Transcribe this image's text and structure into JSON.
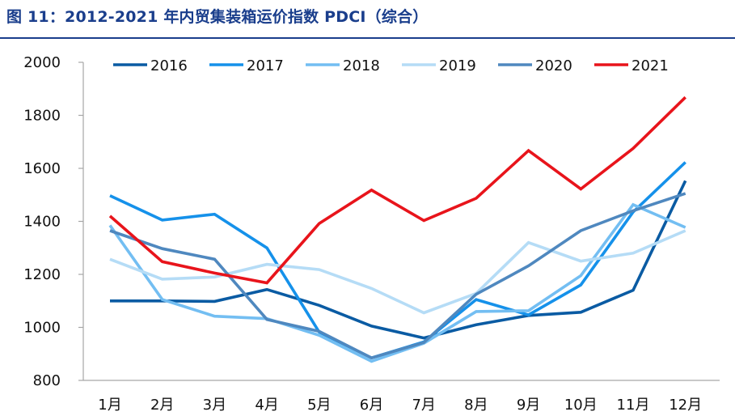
{
  "figure": {
    "title": "图 11：2012-2021 年内贸集装箱运价指数 PDCI（综合）"
  },
  "chart_data": {
    "type": "line",
    "title": "图 11：2012-2021 年内贸集装箱运价指数 PDCI（综合）",
    "xlabel": "",
    "ylabel": "",
    "categories": [
      "1月",
      "2月",
      "3月",
      "4月",
      "5月",
      "6月",
      "7月",
      "8月",
      "9月",
      "10月",
      "11月",
      "12月"
    ],
    "ylim": [
      800,
      2000
    ],
    "yticks": [
      800,
      1000,
      1200,
      1400,
      1600,
      1800,
      2000
    ],
    "grid": false,
    "legend": "top",
    "series": [
      {
        "name": "2016",
        "color": "#0a5ba3",
        "values": [
          1100,
          1100,
          1098,
          1143,
          1083,
          1005,
          960,
          1010,
          1045,
          1057,
          1140,
          1553
        ]
      },
      {
        "name": "2017",
        "color": "#1591ea",
        "values": [
          1497,
          1405,
          1427,
          1300,
          982,
          885,
          945,
          1105,
          1047,
          1160,
          1435,
          1623
        ]
      },
      {
        "name": "2018",
        "color": "#73bef2",
        "values": [
          1385,
          1105,
          1042,
          1033,
          970,
          872,
          940,
          1060,
          1063,
          1195,
          1463,
          1377
        ]
      },
      {
        "name": "2019",
        "color": "#b5dcf6",
        "values": [
          1257,
          1182,
          1190,
          1238,
          1218,
          1147,
          1055,
          1128,
          1320,
          1250,
          1280,
          1365
        ]
      },
      {
        "name": "2020",
        "color": "#4f88bf",
        "values": [
          1365,
          1297,
          1257,
          1030,
          985,
          885,
          943,
          1125,
          1232,
          1365,
          1440,
          1505
        ]
      },
      {
        "name": "2021",
        "color": "#e8141b",
        "values": [
          1420,
          1248,
          1205,
          1168,
          1392,
          1518,
          1403,
          1487,
          1667,
          1522,
          1675,
          1868
        ]
      }
    ]
  }
}
